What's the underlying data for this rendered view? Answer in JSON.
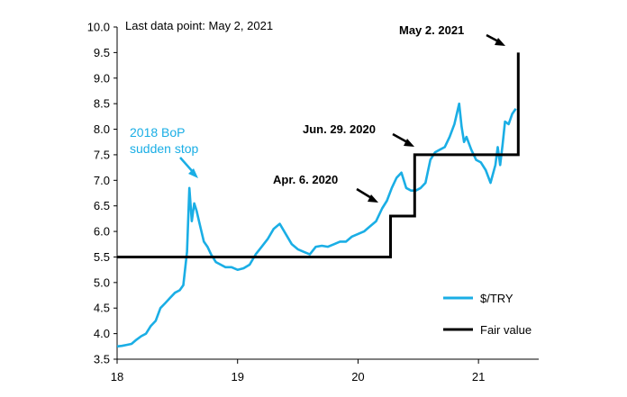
{
  "chart_data": {
    "type": "line",
    "note": "Last data point: May 2, 2021",
    "title": "",
    "xlabel": "",
    "ylabel": "",
    "xlim": [
      18,
      21.5
    ],
    "ylim": [
      3.5,
      10.0
    ],
    "x_ticks": [
      "18",
      "19",
      "20",
      "21"
    ],
    "x_tick_values": [
      18,
      19,
      20,
      21
    ],
    "y_ticks": [
      "3.5",
      "4.0",
      "4.5",
      "5.0",
      "5.5",
      "6.0",
      "6.5",
      "7.0",
      "7.5",
      "8.0",
      "8.5",
      "9.0",
      "9.5",
      "10.0"
    ],
    "y_tick_values": [
      3.5,
      4.0,
      4.5,
      5.0,
      5.5,
      6.0,
      6.5,
      7.0,
      7.5,
      8.0,
      8.5,
      9.0,
      9.5,
      10.0
    ],
    "legend": {
      "position": "bottom-right"
    },
    "series": [
      {
        "name": "$/TRY",
        "color": "#1AAEE5",
        "x": [
          18.0,
          18.04,
          18.08,
          18.12,
          18.16,
          18.2,
          18.24,
          18.28,
          18.32,
          18.36,
          18.4,
          18.44,
          18.48,
          18.52,
          18.55,
          18.58,
          18.6,
          18.62,
          18.64,
          18.66,
          18.68,
          18.7,
          18.72,
          18.75,
          18.78,
          18.82,
          18.86,
          18.9,
          18.95,
          19.0,
          19.05,
          19.1,
          19.15,
          19.2,
          19.25,
          19.3,
          19.35,
          19.4,
          19.45,
          19.5,
          19.55,
          19.6,
          19.65,
          19.7,
          19.75,
          19.8,
          19.85,
          19.9,
          19.95,
          20.0,
          20.05,
          20.1,
          20.15,
          20.2,
          20.24,
          20.28,
          20.32,
          20.36,
          20.4,
          20.44,
          20.48,
          20.52,
          20.56,
          20.6,
          20.64,
          20.68,
          20.72,
          20.76,
          20.8,
          20.84,
          20.86,
          20.88,
          20.9,
          20.94,
          20.98,
          21.02,
          21.06,
          21.1,
          21.14,
          21.16,
          21.18,
          21.2,
          21.22,
          21.25,
          21.28,
          21.31
        ],
        "y": [
          3.75,
          3.76,
          3.78,
          3.8,
          3.88,
          3.95,
          4.0,
          4.15,
          4.25,
          4.5,
          4.6,
          4.7,
          4.8,
          4.85,
          4.95,
          5.6,
          6.85,
          6.2,
          6.55,
          6.4,
          6.2,
          6.0,
          5.8,
          5.7,
          5.55,
          5.4,
          5.35,
          5.3,
          5.3,
          5.25,
          5.28,
          5.35,
          5.55,
          5.7,
          5.85,
          6.05,
          6.15,
          5.95,
          5.75,
          5.65,
          5.6,
          5.55,
          5.7,
          5.72,
          5.7,
          5.75,
          5.8,
          5.8,
          5.9,
          5.95,
          6.0,
          6.1,
          6.2,
          6.45,
          6.6,
          6.85,
          7.05,
          7.15,
          6.85,
          6.8,
          6.8,
          6.85,
          6.95,
          7.4,
          7.55,
          7.6,
          7.65,
          7.85,
          8.1,
          8.5,
          8.05,
          7.75,
          7.85,
          7.6,
          7.4,
          7.35,
          7.2,
          6.95,
          7.3,
          7.65,
          7.3,
          7.7,
          8.15,
          8.1,
          8.3,
          8.4
        ]
      },
      {
        "name": "Fair value",
        "color": "#000000",
        "step": true,
        "x": [
          18.0,
          20.27,
          20.27,
          20.47,
          20.47,
          21.33,
          21.33
        ],
        "y": [
          5.5,
          5.5,
          6.3,
          6.3,
          7.5,
          7.5,
          9.5
        ]
      }
    ],
    "annotations": [
      {
        "text": "2018 BoP",
        "color": "#1AAEE5"
      },
      {
        "text": "sudden stop",
        "color": "#1AAEE5"
      },
      {
        "text": "Apr. 6. 2020"
      },
      {
        "text": "Jun. 29. 2020"
      },
      {
        "text": "May 2. 2021"
      }
    ]
  }
}
